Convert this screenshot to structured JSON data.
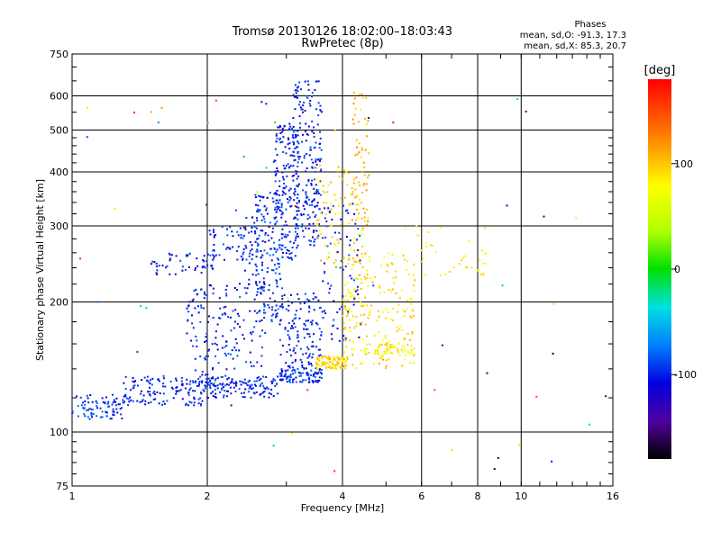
{
  "chart_data": {
    "type": "scatter",
    "title": "Tromsø 20130126 18:02:00–18:03:43",
    "subtitle": "RwPretec (8p)",
    "xlabel": "Frequency [MHz]",
    "ylabel": "Stationary phase Virtual Height [km]",
    "x_scale": "log",
    "y_scale": "log",
    "xlim": [
      1,
      16
    ],
    "ylim": [
      75,
      750
    ],
    "xticks": [
      "1",
      "2",
      "4",
      "6",
      "8",
      "10",
      "16"
    ],
    "yticks": [
      "75",
      "100",
      "200",
      "300",
      "400",
      "500",
      "600",
      "750"
    ],
    "grid": true,
    "phase_header": "Phases",
    "phase_o": "mean, sd,O: -91.3, 17.3",
    "phase_x": "mean, sd,X:  85.3, 20.7",
    "colorbar": {
      "label": "[deg]",
      "range": [
        -180,
        180
      ],
      "ticks": [
        "100",
        "0",
        "-100"
      ],
      "tick_values": [
        100,
        0,
        -100
      ]
    },
    "colors": {
      "o_mode": "#1e3cff",
      "x_mode": "#d8e800"
    },
    "clusters": [
      {
        "x": [
          1.0,
          1.3
        ],
        "y": [
          107,
          122
        ],
        "phase": -95,
        "n": 80
      },
      {
        "x": [
          1.3,
          2.0
        ],
        "y": [
          115,
          135
        ],
        "phase": -100,
        "n": 140
      },
      {
        "x": [
          2.0,
          2.9
        ],
        "y": [
          120,
          135
        ],
        "phase": -100,
        "n": 120
      },
      {
        "x": [
          1.5,
          2.1
        ],
        "y": [
          230,
          260
        ],
        "phase": -105,
        "n": 50
      },
      {
        "x": [
          1.8,
          2.3
        ],
        "y": [
          128,
          220
        ],
        "phase": -100,
        "n": 120
      },
      {
        "x": [
          2.0,
          2.6
        ],
        "y": [
          250,
          300
        ],
        "phase": -95,
        "n": 60
      },
      {
        "x": [
          2.3,
          2.7
        ],
        "y": [
          140,
          330
        ],
        "phase": -100,
        "n": 90
      },
      {
        "x": [
          2.55,
          2.95
        ],
        "y": [
          180,
          360
        ],
        "phase": -95,
        "n": 160
      },
      {
        "x": [
          2.8,
          3.2
        ],
        "y": [
          250,
          520
        ],
        "phase": -100,
        "n": 160
      },
      {
        "x": [
          3.1,
          3.6
        ],
        "y": [
          270,
          650
        ],
        "phase": -100,
        "n": 220
      },
      {
        "x": [
          2.9,
          3.6
        ],
        "y": [
          130,
          210
        ],
        "phase": -100,
        "n": 160
      },
      {
        "x": [
          2.9,
          3.6
        ],
        "y": [
          130,
          140
        ],
        "phase": -95,
        "n": 60
      },
      {
        "x": [
          3.5,
          4.1
        ],
        "y": [
          140,
          150
        ],
        "phase": 95,
        "n": 90
      },
      {
        "x": [
          3.5,
          4.5
        ],
        "y": [
          240,
          420
        ],
        "phase": 90,
        "n": 90
      },
      {
        "x": [
          4.2,
          4.6
        ],
        "y": [
          300,
          620
        ],
        "phase": 105,
        "n": 60
      },
      {
        "x": [
          4.0,
          5.8
        ],
        "y": [
          140,
          260
        ],
        "phase": 90,
        "n": 200
      },
      {
        "x": [
          4.4,
          5.8
        ],
        "y": [
          150,
          160
        ],
        "phase": 80,
        "n": 60
      },
      {
        "x": [
          3.6,
          4.4
        ],
        "y": [
          160,
          340
        ],
        "phase": -100,
        "n": 80
      },
      {
        "x": [
          5.5,
          8.5
        ],
        "y": [
          230,
          300
        ],
        "phase": 85,
        "n": 40
      },
      {
        "x": [
          1.0,
          16.0
        ],
        "y": [
          78,
          600
        ],
        "phase": 0,
        "n": 60
      }
    ]
  }
}
